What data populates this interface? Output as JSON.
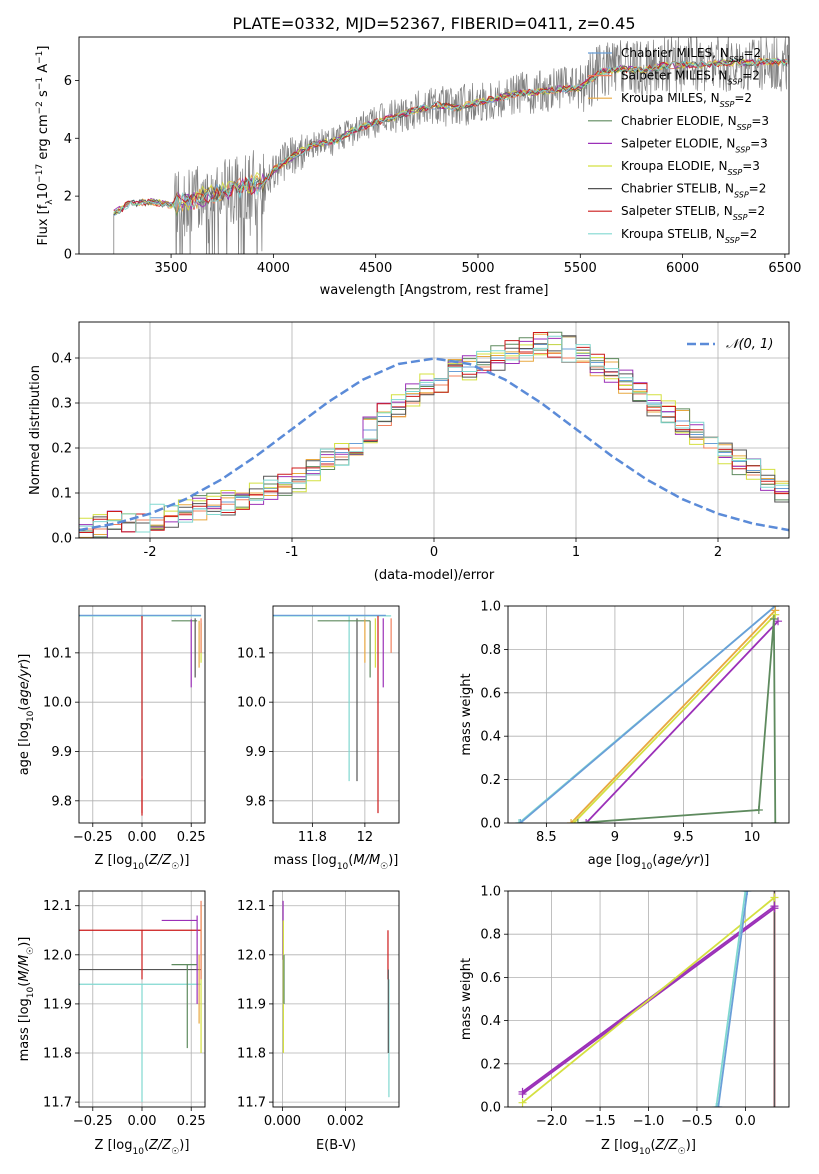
{
  "title": "PLATE=0332, MJD=52367, FIBERID=0411, z=0.45",
  "colors": {
    "chabrier_miles": "#6a9fd8",
    "salpeter_miles": "#f0805e",
    "kroupa_miles": "#e8a840",
    "chabrier_elodie": "#5e8a5e",
    "salpeter_elodie": "#9b30b8",
    "kroupa_elodie": "#d4e040",
    "chabrier_stelib": "#555555",
    "salpeter_stelib": "#cc1a1a",
    "kroupa_stelib": "#80d8d0",
    "data_grey": "#808080",
    "normal_curve": "#5b8bd8",
    "grid": "#b0b0b0"
  },
  "chart_data": [
    {
      "id": "spectrum",
      "type": "line",
      "xlabel": "wavelength [Angstrom, rest frame]",
      "ylabel": "Flux [f_λ 10^-17 erg cm^-2 s^-1 A^-1]",
      "xlim": [
        3050,
        6520
      ],
      "ylim": [
        0,
        7.5
      ],
      "xticks": [
        3500,
        4000,
        4500,
        5000,
        5500,
        6000,
        6500
      ],
      "yticks": [
        0,
        2,
        4,
        6
      ],
      "grid": false,
      "legend_position": "right",
      "legend": [
        {
          "text": "Chabrier MILES, N",
          "sub": "SSP",
          "tail": "=2",
          "color_key": "chabrier_miles"
        },
        {
          "text": "Salpeter MILES, N",
          "sub": "SSP",
          "tail": "=2",
          "color_key": "salpeter_miles"
        },
        {
          "text": "Kroupa MILES, N",
          "sub": "SSP",
          "tail": "=2",
          "color_key": "kroupa_miles"
        },
        {
          "text": "Chabrier ELODIE, N",
          "sub": "SSP",
          "tail": "=3",
          "color_key": "chabrier_elodie"
        },
        {
          "text": "Salpeter ELODIE, N",
          "sub": "SSP",
          "tail": "=3",
          "color_key": "salpeter_elodie"
        },
        {
          "text": "Kroupa ELODIE, N",
          "sub": "SSP",
          "tail": "=3",
          "color_key": "kroupa_elodie"
        },
        {
          "text": "Chabrier STELIB, N",
          "sub": "SSP",
          "tail": "=2",
          "color_key": "chabrier_stelib"
        },
        {
          "text": "Salpeter STELIB, N",
          "sub": "SSP",
          "tail": "=2",
          "color_key": "salpeter_stelib"
        },
        {
          "text": "Kroupa STELIB, N",
          "sub": "SSP",
          "tail": "=2",
          "color_key": "kroupa_stelib"
        }
      ],
      "continuum": {
        "wavelength": [
          3220,
          3300,
          3400,
          3500,
          3600,
          3700,
          3800,
          3900,
          3950,
          4000,
          4100,
          4200,
          4300,
          4400,
          4500,
          4600,
          4700,
          4800,
          4900,
          5000,
          5100,
          5200,
          5300,
          5400,
          5500,
          5600,
          5700,
          5800,
          5900,
          6000,
          6100,
          6200,
          6300,
          6400,
          6500
        ],
        "flux": [
          1.4,
          1.75,
          1.8,
          1.7,
          1.85,
          2.05,
          2.2,
          2.4,
          2.45,
          2.9,
          3.4,
          3.8,
          3.9,
          4.3,
          4.55,
          4.75,
          5.0,
          5.15,
          5.05,
          5.25,
          5.4,
          5.55,
          5.6,
          5.7,
          5.75,
          6.3,
          6.4,
          6.35,
          6.5,
          6.55,
          6.55,
          6.6,
          6.6,
          6.65,
          6.6
        ]
      }
    },
    {
      "id": "residuals",
      "type": "histogram",
      "xlabel": "(data-model)/error",
      "ylabel": "Normed distribution",
      "xlim": [
        -2.5,
        2.5
      ],
      "ylim": [
        0,
        0.48
      ],
      "xticks": [
        -2,
        -1,
        0,
        1,
        2
      ],
      "yticks": [
        0.0,
        0.1,
        0.2,
        0.3,
        0.4
      ],
      "grid": true,
      "legend_position": "upper right",
      "legend": [
        {
          "text": "𝒩(0, 1)",
          "color_key": "normal_curve"
        }
      ],
      "bins": {
        "start": -2.5,
        "width": 0.1,
        "count": 50
      },
      "series": [
        {
          "color_key": "chabrier_miles",
          "values": [
            0.02,
            0.025,
            0.03,
            0.035,
            0.04,
            0.045,
            0.05,
            0.06,
            0.065,
            0.07,
            0.08,
            0.09,
            0.1,
            0.11,
            0.12,
            0.13,
            0.15,
            0.17,
            0.19,
            0.21,
            0.24,
            0.27,
            0.29,
            0.32,
            0.34,
            0.35,
            0.37,
            0.38,
            0.39,
            0.4,
            0.41,
            0.42,
            0.43,
            0.43,
            0.42,
            0.41,
            0.39,
            0.37,
            0.35,
            0.33,
            0.3,
            0.28,
            0.26,
            0.23,
            0.21,
            0.19,
            0.17,
            0.15,
            0.13,
            0.11
          ]
        },
        {
          "color_key": "salpeter_miles",
          "values": [
            0.02,
            0.02,
            0.03,
            0.035,
            0.04,
            0.04,
            0.05,
            0.055,
            0.06,
            0.065,
            0.075,
            0.085,
            0.095,
            0.105,
            0.115,
            0.125,
            0.14,
            0.16,
            0.18,
            0.2,
            0.22,
            0.25,
            0.27,
            0.3,
            0.32,
            0.34,
            0.36,
            0.37,
            0.38,
            0.39,
            0.4,
            0.41,
            0.41,
            0.41,
            0.4,
            0.39,
            0.38,
            0.36,
            0.34,
            0.32,
            0.29,
            0.27,
            0.25,
            0.22,
            0.2,
            0.18,
            0.16,
            0.14,
            0.12,
            0.1
          ]
        }
      ],
      "normal_curve": {
        "x": [
          -2.5,
          -2.25,
          -2.0,
          -1.75,
          -1.5,
          -1.25,
          -1.0,
          -0.75,
          -0.5,
          -0.25,
          0,
          0.25,
          0.5,
          0.75,
          1.0,
          1.25,
          1.5,
          1.75,
          2.0,
          2.25,
          2.5
        ],
        "y": [
          0.0175,
          0.0317,
          0.054,
          0.0863,
          0.1295,
          0.1826,
          0.242,
          0.3011,
          0.3521,
          0.3867,
          0.3989,
          0.3867,
          0.3521,
          0.3011,
          0.242,
          0.1826,
          0.1295,
          0.0863,
          0.054,
          0.0317,
          0.0175
        ]
      }
    },
    {
      "id": "age_vs_Z",
      "type": "scatter",
      "xlabel": "Z [log10(Z/Z☉)]",
      "ylabel": "age [log10(age/yr)]",
      "xlim": [
        -0.32,
        0.32
      ],
      "ylim": [
        9.755,
        10.195
      ],
      "xticks": [
        -0.25,
        0.0,
        0.25
      ],
      "xticklabels": [
        "−0.25",
        "0.00",
        "0.25"
      ],
      "yticks": [
        9.8,
        9.9,
        10.0,
        10.1
      ],
      "grid": true
    },
    {
      "id": "age_vs_mass",
      "type": "scatter",
      "xlabel": "mass [log10(M/M☉)]",
      "ylabel": "",
      "xlim": [
        11.65,
        12.13
      ],
      "ylim": [
        9.755,
        10.195
      ],
      "xticks": [
        11.8,
        12.0
      ],
      "yticks": [
        9.8,
        9.9,
        10.0,
        10.1
      ],
      "grid": true
    },
    {
      "id": "weight_vs_age",
      "type": "line",
      "xlabel": "age [log10(age/yr)]",
      "ylabel": "mass weight",
      "xlim": [
        8.22,
        10.27
      ],
      "ylim": [
        0,
        1.0
      ],
      "xticks": [
        8.5,
        9.0,
        9.5,
        10.0
      ],
      "yticks": [
        0.0,
        0.2,
        0.4,
        0.6,
        0.8,
        1.0
      ],
      "grid": true,
      "series": [
        {
          "color_key": "kroupa_stelib",
          "x": [
            8.3,
            10.17
          ],
          "y": [
            0.0,
            1.0
          ]
        },
        {
          "color_key": "chabrier_miles",
          "x": [
            8.31,
            10.17
          ],
          "y": [
            0.0,
            1.0
          ]
        },
        {
          "color_key": "kroupa_miles",
          "x": [
            8.68,
            10.17
          ],
          "y": [
            0.0,
            0.98
          ]
        },
        {
          "color_key": "kroupa_elodie",
          "x": [
            8.7,
            10.17
          ],
          "y": [
            0.0,
            0.96
          ]
        },
        {
          "color_key": "salpeter_elodie",
          "x": [
            8.79,
            10.19
          ],
          "y": [
            0.0,
            0.93
          ]
        },
        {
          "color_key": "chabrier_elodie",
          "x": [
            8.73,
            10.05,
            10.16,
            10.17
          ],
          "y": [
            0.0,
            0.06,
            0.94,
            0.0
          ]
        }
      ]
    },
    {
      "id": "mass_vs_Z",
      "type": "scatter",
      "xlabel": "Z [log10(Z/Z☉)]",
      "ylabel": "mass [log10(M/M☉)]",
      "xlim": [
        -0.32,
        0.32
      ],
      "ylim": [
        11.69,
        12.13
      ],
      "xticks": [
        -0.25,
        0.0,
        0.25
      ],
      "xticklabels": [
        "−0.25",
        "0.00",
        "0.25"
      ],
      "yticks": [
        11.7,
        11.8,
        11.9,
        12.0,
        12.1
      ],
      "grid": true
    },
    {
      "id": "mass_vs_ebv",
      "type": "scatter",
      "xlabel": "E(B-V)",
      "ylabel": "",
      "xlim": [
        -0.0003,
        0.0037
      ],
      "ylim": [
        11.69,
        12.13
      ],
      "xticks": [
        0.0,
        0.002
      ],
      "xticklabels": [
        "0.000",
        "0.002"
      ],
      "yticks": [
        11.7,
        11.8,
        11.9,
        12.0,
        12.1
      ],
      "grid": true
    },
    {
      "id": "weight_vs_Z",
      "type": "line",
      "xlabel": "Z [log10(Z/Z☉)]",
      "ylabel": "mass weight",
      "xlim": [
        -2.45,
        0.45
      ],
      "ylim": [
        0,
        1.0
      ],
      "xticks": [
        -2.0,
        -1.5,
        -1.0,
        -0.5,
        0.0
      ],
      "xticklabels": [
        "−2.0",
        "−1.5",
        "−1.0",
        "−0.5",
        "0.0"
      ],
      "yticks": [
        0.0,
        0.2,
        0.4,
        0.6,
        0.8,
        1.0
      ],
      "grid": true,
      "series": [
        {
          "color_key": "salpeter_elodie",
          "x": [
            -2.3,
            0.3
          ],
          "y": [
            0.07,
            0.93
          ]
        },
        {
          "color_key": "salpeter_elodie",
          "x": [
            -2.3,
            0.3
          ],
          "y": [
            0.06,
            0.92
          ]
        },
        {
          "color_key": "kroupa_elodie",
          "x": [
            -2.3,
            0.3
          ],
          "y": [
            0.02,
            0.97
          ]
        },
        {
          "color_key": "kroupa_stelib",
          "x": [
            -0.3,
            0.0
          ],
          "y": [
            0.0,
            1.0
          ]
        },
        {
          "color_key": "chabrier_miles",
          "x": [
            -0.28,
            0.02
          ],
          "y": [
            0.0,
            1.0
          ]
        }
      ]
    }
  ]
}
